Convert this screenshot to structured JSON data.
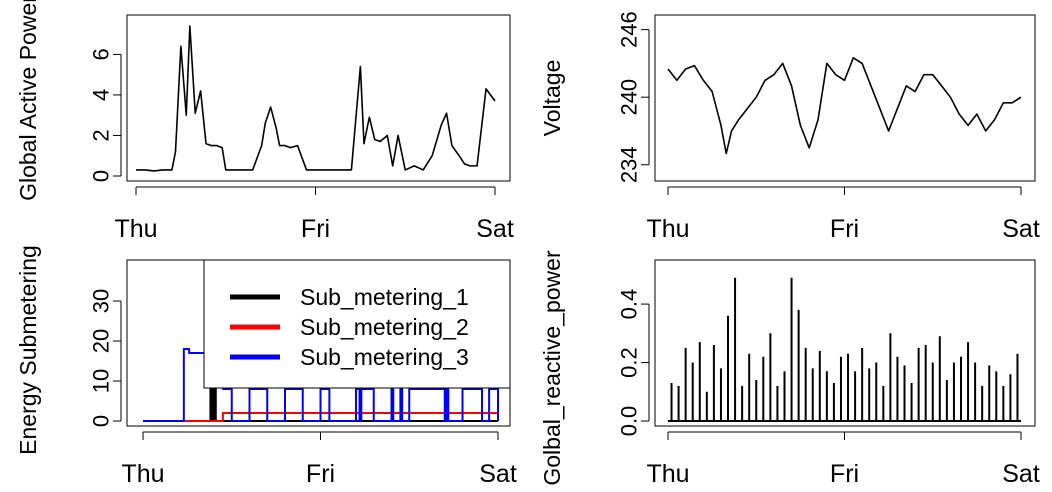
{
  "chart_data": [
    {
      "type": "line",
      "title": "",
      "xlabel": "",
      "ylabel": "Global Active Power",
      "xticks": [
        "Thu",
        "Fri",
        "Sat"
      ],
      "xlim": [
        0,
        2
      ],
      "ylim": [
        0,
        7.5
      ],
      "yticks": [
        0,
        2,
        4,
        6
      ],
      "x": [
        0.0,
        0.05,
        0.1,
        0.15,
        0.2,
        0.22,
        0.25,
        0.28,
        0.3,
        0.33,
        0.36,
        0.39,
        0.42,
        0.45,
        0.48,
        0.5,
        0.52,
        0.55,
        0.6,
        0.65,
        0.7,
        0.72,
        0.75,
        0.78,
        0.8,
        0.83,
        0.86,
        0.9,
        0.95,
        1.0,
        1.05,
        1.1,
        1.15,
        1.2,
        1.25,
        1.27,
        1.3,
        1.33,
        1.36,
        1.4,
        1.43,
        1.46,
        1.5,
        1.55,
        1.6,
        1.65,
        1.7,
        1.73,
        1.76,
        1.8,
        1.83,
        1.86,
        1.9,
        1.95,
        2.0
      ],
      "series": [
        {
          "values": [
            0.3,
            0.3,
            0.25,
            0.3,
            0.3,
            1.2,
            6.4,
            3.0,
            7.4,
            3.1,
            4.2,
            1.6,
            1.5,
            1.5,
            1.4,
            0.3,
            0.3,
            0.3,
            0.3,
            0.3,
            1.5,
            2.6,
            3.4,
            2.4,
            1.5,
            1.5,
            1.4,
            1.5,
            0.3,
            0.3,
            0.3,
            0.3,
            0.3,
            0.3,
            5.4,
            1.6,
            2.9,
            1.8,
            1.7,
            2.0,
            0.5,
            2.0,
            0.3,
            0.5,
            0.3,
            1.0,
            2.5,
            3.1,
            1.5,
            1.0,
            0.6,
            0.5,
            0.5,
            4.3,
            3.7
          ],
          "color": "#000000"
        }
      ]
    },
    {
      "type": "line",
      "title": "",
      "xlabel": "",
      "ylabel": "Voltage",
      "xticks": [
        "Thu",
        "Fri",
        "Sat"
      ],
      "xlim": [
        0,
        2
      ],
      "ylim": [
        233,
        246.5
      ],
      "yticks": [
        234,
        240,
        246
      ],
      "x": [
        0.0,
        0.05,
        0.1,
        0.15,
        0.2,
        0.25,
        0.3,
        0.33,
        0.36,
        0.4,
        0.45,
        0.5,
        0.55,
        0.6,
        0.65,
        0.7,
        0.75,
        0.8,
        0.85,
        0.9,
        0.95,
        1.0,
        1.05,
        1.1,
        1.15,
        1.2,
        1.25,
        1.3,
        1.35,
        1.4,
        1.45,
        1.5,
        1.55,
        1.6,
        1.65,
        1.7,
        1.75,
        1.8,
        1.85,
        1.9,
        1.95,
        2.0
      ],
      "series": [
        {
          "values": [
            242.5,
            241.5,
            242.5,
            242.8,
            241.5,
            240.5,
            237.5,
            235.0,
            237.0,
            238.0,
            239.0,
            240.0,
            241.5,
            242.0,
            243.0,
            241.0,
            237.5,
            235.5,
            238.0,
            243.0,
            242.0,
            241.5,
            243.5,
            243.0,
            241.0,
            239.0,
            237.0,
            239.0,
            241.0,
            240.5,
            242.0,
            242.0,
            241.0,
            240.0,
            238.5,
            237.5,
            238.5,
            237.0,
            238.0,
            239.5,
            239.5,
            240.0
          ],
          "color": "#000000"
        }
      ]
    },
    {
      "type": "line",
      "title": "",
      "xlabel": "",
      "ylabel": "Energy Submetering",
      "xticks": [
        "Thu",
        "Fri",
        "Sat"
      ],
      "xlim": [
        0,
        2
      ],
      "ylim": [
        0,
        38
      ],
      "yticks": [
        0,
        10,
        20,
        30
      ],
      "legend": "top-right",
      "x": [
        0.0,
        0.22,
        0.23,
        0.24,
        0.25,
        0.26,
        0.27,
        0.28,
        0.29,
        0.3,
        0.31,
        0.32,
        0.33,
        0.34,
        0.35,
        0.36,
        0.37,
        0.38,
        0.39,
        0.4,
        0.41,
        0.45,
        0.5,
        0.6,
        0.7,
        0.8,
        0.9,
        1.0,
        1.05,
        1.1,
        1.2,
        1.22,
        1.23,
        1.3,
        1.4,
        1.41,
        1.45,
        1.46,
        1.5,
        1.6,
        1.7,
        1.71,
        1.72,
        1.8,
        1.85,
        1.9,
        1.91,
        1.95,
        2.0
      ],
      "series": [
        {
          "name": "Sub_metering_1",
          "color": "#000000",
          "values": [
            0,
            0,
            0,
            0,
            0,
            0,
            0,
            0,
            0,
            0,
            0,
            0,
            0,
            0,
            0,
            0,
            0,
            12,
            0,
            11,
            0,
            0,
            0,
            0,
            0,
            0,
            0,
            0,
            0,
            0,
            0,
            0,
            0,
            0,
            0,
            0,
            0,
            0,
            0,
            0,
            0,
            0,
            0,
            0,
            0,
            0,
            0,
            0,
            0
          ]
        },
        {
          "name": "Sub_metering_2",
          "color": "#ff0000",
          "values": [
            0,
            0,
            0,
            0,
            0,
            0,
            0,
            0,
            0,
            0,
            0,
            0,
            0,
            0,
            0,
            0,
            0,
            0,
            0,
            0,
            0,
            2,
            2,
            2,
            2,
            2,
            2,
            2,
            2,
            2,
            2,
            2,
            2,
            2,
            2,
            2,
            2,
            2,
            2,
            2,
            2,
            2,
            2,
            2,
            2,
            2,
            2,
            2,
            0
          ]
        },
        {
          "name": "Sub_metering_3",
          "color": "#0000ff",
          "values": [
            0,
            0,
            18,
            18,
            18,
            17,
            17,
            17,
            17,
            17,
            17,
            17,
            17,
            17,
            17,
            17,
            17,
            17,
            17,
            17,
            17,
            8,
            0,
            8,
            0,
            8,
            0,
            8,
            0,
            0,
            8,
            0,
            8,
            0,
            8,
            0,
            8,
            0,
            8,
            8,
            0,
            8,
            0,
            8,
            8,
            8,
            0,
            8,
            0
          ]
        }
      ]
    },
    {
      "type": "bar",
      "title": "",
      "xlabel": "",
      "ylabel": "Golbal_reactive_power",
      "xticks": [
        "Thu",
        "Fri",
        "Sat"
      ],
      "xlim": [
        0,
        2
      ],
      "ylim": [
        0,
        0.52
      ],
      "yticks": [
        0.0,
        0.2,
        0.4
      ],
      "x": [
        0.02,
        0.06,
        0.1,
        0.14,
        0.18,
        0.22,
        0.26,
        0.3,
        0.34,
        0.38,
        0.42,
        0.46,
        0.5,
        0.54,
        0.58,
        0.62,
        0.66,
        0.7,
        0.74,
        0.78,
        0.82,
        0.86,
        0.9,
        0.94,
        0.98,
        1.02,
        1.06,
        1.1,
        1.14,
        1.18,
        1.22,
        1.26,
        1.3,
        1.34,
        1.38,
        1.42,
        1.46,
        1.5,
        1.54,
        1.58,
        1.62,
        1.66,
        1.7,
        1.74,
        1.78,
        1.82,
        1.86,
        1.9,
        1.94,
        1.98
      ],
      "series": [
        {
          "color": "#000000",
          "values": [
            0.13,
            0.12,
            0.25,
            0.2,
            0.27,
            0.1,
            0.26,
            0.18,
            0.36,
            0.49,
            0.12,
            0.23,
            0.14,
            0.22,
            0.3,
            0.12,
            0.17,
            0.49,
            0.38,
            0.25,
            0.18,
            0.24,
            0.17,
            0.13,
            0.22,
            0.23,
            0.17,
            0.25,
            0.18,
            0.2,
            0.12,
            0.3,
            0.22,
            0.19,
            0.13,
            0.25,
            0.26,
            0.2,
            0.29,
            0.14,
            0.2,
            0.22,
            0.27,
            0.2,
            0.12,
            0.19,
            0.17,
            0.12,
            0.16,
            0.23
          ]
        }
      ]
    }
  ]
}
